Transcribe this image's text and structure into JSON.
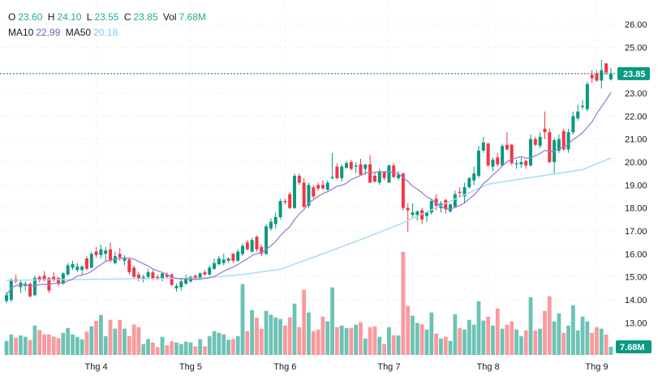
{
  "legend": {
    "o_label": "O",
    "o": "23.60",
    "h_label": "H",
    "h": "24.10",
    "l_label": "L",
    "l": "23.55",
    "c_label": "C",
    "c": "23.85",
    "vol_label": "Vol",
    "vol": "7.68M",
    "ma10_label": "MA10",
    "ma10": "22.99",
    "ma50_label": "MA50",
    "ma50": "20.18"
  },
  "colors": {
    "up": "#089981",
    "down": "#f23645",
    "up_vol": "#6cc3b5",
    "down_vol": "#f99a9d",
    "ma10": "#9b80cf",
    "ma50": "#a9dcf8",
    "last_tag": "#089981"
  },
  "chart_data": {
    "type": "candlestick",
    "price_axis": {
      "ticks": [
        "26.00",
        "25.00",
        "23.00",
        "22.00",
        "21.00",
        "20.00",
        "19.00",
        "18.00",
        "17.00",
        "16.00",
        "15.00",
        "14.00",
        "13.00"
      ],
      "range": [
        12.6,
        26.5
      ]
    },
    "time_axis": {
      "labels": [
        "Thg 4",
        "Thg 5",
        "Thg 6",
        "Thg 7",
        "Thg 8",
        "Thg 9"
      ],
      "label_bar_index": [
        19,
        39,
        59,
        81,
        102,
        125
      ]
    },
    "last_price_label": "23.85",
    "last_volume_label": "7.68M",
    "volume_unit": "M",
    "ma10_period": 10,
    "ma50_points": [
      [
        0,
        14.85
      ],
      [
        20,
        14.9
      ],
      [
        41,
        14.94
      ],
      [
        50,
        15.1
      ],
      [
        58,
        15.33
      ],
      [
        67,
        16.0
      ],
      [
        76,
        16.7
      ],
      [
        84,
        17.35
      ],
      [
        86,
        17.55
      ],
      [
        102,
        19.04
      ],
      [
        122,
        19.67
      ],
      [
        128,
        20.18
      ]
    ],
    "ohlcv": [
      [
        13.95,
        14.35,
        13.85,
        14.2,
        13.3
      ],
      [
        14.0,
        14.95,
        13.9,
        14.85,
        19.5
      ],
      [
        14.9,
        15.1,
        14.7,
        14.8,
        16.4
      ],
      [
        14.55,
        14.85,
        14.3,
        14.75,
        18.5
      ],
      [
        14.6,
        14.8,
        14.4,
        14.7,
        17.2
      ],
      [
        14.7,
        14.75,
        14.1,
        14.15,
        14.1
      ],
      [
        14.2,
        15.05,
        14.15,
        14.95,
        27.9
      ],
      [
        15.0,
        15.05,
        14.75,
        14.85,
        23.6
      ],
      [
        15.05,
        15.25,
        14.8,
        14.9,
        19.5
      ],
      [
        14.95,
        15.0,
        14.3,
        14.4,
        19.5
      ],
      [
        15.0,
        15.2,
        14.8,
        14.85,
        17.4
      ],
      [
        14.95,
        15.0,
        14.6,
        14.7,
        15.9
      ],
      [
        14.7,
        15.2,
        14.65,
        15.15,
        21.0
      ],
      [
        15.1,
        15.6,
        15.05,
        15.5,
        25.6
      ],
      [
        15.4,
        15.7,
        15.3,
        15.55,
        19.5
      ],
      [
        15.3,
        15.6,
        15.2,
        15.45,
        17.2
      ],
      [
        15.3,
        15.5,
        15.1,
        15.45,
        14.9
      ],
      [
        15.8,
        15.9,
        15.3,
        15.35,
        22.1
      ],
      [
        15.4,
        16.1,
        15.35,
        16.0,
        27.2
      ],
      [
        16.1,
        16.3,
        15.85,
        15.95,
        32.3
      ],
      [
        15.95,
        16.4,
        15.8,
        16.2,
        37.9
      ],
      [
        16.0,
        16.3,
        15.7,
        16.15,
        17.9
      ],
      [
        16.2,
        16.5,
        15.6,
        15.7,
        33.3
      ],
      [
        15.6,
        16.1,
        15.55,
        15.9,
        24.9
      ],
      [
        16.0,
        16.25,
        15.7,
        15.85,
        33.3
      ],
      [
        15.7,
        15.95,
        15.5,
        15.8,
        24.9
      ],
      [
        15.75,
        15.85,
        15.1,
        15.2,
        17.9
      ],
      [
        15.4,
        15.5,
        14.95,
        15.0,
        29.0
      ],
      [
        15.1,
        15.2,
        14.8,
        14.9,
        26.4
      ],
      [
        14.9,
        15.1,
        14.75,
        15.0,
        10.3
      ],
      [
        15.0,
        15.35,
        14.9,
        15.2,
        15.1
      ],
      [
        15.2,
        15.3,
        14.85,
        14.9,
        11.8
      ],
      [
        15.0,
        15.1,
        14.85,
        14.9,
        7.4
      ],
      [
        14.9,
        15.2,
        14.8,
        15.15,
        17.2
      ],
      [
        15.1,
        15.2,
        14.9,
        15.0,
        9.0
      ],
      [
        15.1,
        15.15,
        14.6,
        14.65,
        12.8
      ],
      [
        14.5,
        14.7,
        14.35,
        14.6,
        11.8
      ],
      [
        14.55,
        14.9,
        14.4,
        14.8,
        10.3
      ],
      [
        14.7,
        15.1,
        14.65,
        14.95,
        12.6
      ],
      [
        14.8,
        15.05,
        14.75,
        15.0,
        11.8
      ],
      [
        15.05,
        15.1,
        14.85,
        14.9,
        8.2
      ],
      [
        14.9,
        15.2,
        14.85,
        15.15,
        14.9
      ],
      [
        15.2,
        15.3,
        15.05,
        15.1,
        8.2
      ],
      [
        15.1,
        15.5,
        15.05,
        15.4,
        17.9
      ],
      [
        15.35,
        15.8,
        15.3,
        15.6,
        22.6
      ],
      [
        15.55,
        15.9,
        15.5,
        15.8,
        21.0
      ],
      [
        15.6,
        16.0,
        15.5,
        15.75,
        19.5
      ],
      [
        15.7,
        15.85,
        15.6,
        15.8,
        14.4
      ],
      [
        16.0,
        16.05,
        15.6,
        15.7,
        15.1
      ],
      [
        15.7,
        16.2,
        15.65,
        16.1,
        17.9
      ],
      [
        16.0,
        16.45,
        15.9,
        16.35,
        67.2
      ],
      [
        16.5,
        16.6,
        16.15,
        16.2,
        22.6
      ],
      [
        16.1,
        16.7,
        16.05,
        16.6,
        42.6
      ],
      [
        16.75,
        16.8,
        16.1,
        16.2,
        35.4
      ],
      [
        16.3,
        16.4,
        15.9,
        16.0,
        24.9
      ],
      [
        16.0,
        17.3,
        15.95,
        17.2,
        41.8
      ],
      [
        17.1,
        17.55,
        17.0,
        17.4,
        38.2
      ],
      [
        17.3,
        17.8,
        17.1,
        17.6,
        35.6
      ],
      [
        17.6,
        18.4,
        17.5,
        18.3,
        34.1
      ],
      [
        18.3,
        18.4,
        18.15,
        18.25,
        27.9
      ],
      [
        18.6,
        18.7,
        17.95,
        18.0,
        35.6
      ],
      [
        18.0,
        19.5,
        17.95,
        19.4,
        48.7
      ],
      [
        19.4,
        19.5,
        19.0,
        19.1,
        26.4
      ],
      [
        19.1,
        19.3,
        18.0,
        18.05,
        61.8
      ],
      [
        18.1,
        19.1,
        18.0,
        19.0,
        40.3
      ],
      [
        18.9,
        19.0,
        18.4,
        18.5,
        22.6
      ],
      [
        19.0,
        19.1,
        18.75,
        18.85,
        24.1
      ],
      [
        19.0,
        19.2,
        18.8,
        18.85,
        36.4
      ],
      [
        18.8,
        19.2,
        18.75,
        19.1,
        31.8
      ],
      [
        19.3,
        20.4,
        19.25,
        19.35,
        64.1
      ],
      [
        19.8,
        19.95,
        19.25,
        19.3,
        26.4
      ],
      [
        19.3,
        19.9,
        19.15,
        19.8,
        27.9
      ],
      [
        19.75,
        20.05,
        19.7,
        19.95,
        25.6
      ],
      [
        20.0,
        20.1,
        19.65,
        19.7,
        25.6
      ],
      [
        19.8,
        20.0,
        19.5,
        19.85,
        28.7
      ],
      [
        19.9,
        20.15,
        19.4,
        19.45,
        31.0
      ],
      [
        19.7,
        19.9,
        19.45,
        19.9,
        15.6
      ],
      [
        19.9,
        20.3,
        19.1,
        19.1,
        26.4
      ],
      [
        19.4,
        19.55,
        19.1,
        19.15,
        27.2
      ],
      [
        19.1,
        19.7,
        19.0,
        19.6,
        17.2
      ],
      [
        19.55,
        19.6,
        19.2,
        19.3,
        10.3
      ],
      [
        19.1,
        19.9,
        19.1,
        19.85,
        26.4
      ],
      [
        19.85,
        19.95,
        19.3,
        19.35,
        18.7
      ],
      [
        19.3,
        19.6,
        19.2,
        19.45,
        18.5
      ],
      [
        19.5,
        19.55,
        17.9,
        18.0,
        97.9
      ],
      [
        18.0,
        18.2,
        16.95,
        17.9,
        46.4
      ],
      [
        17.7,
        18.2,
        17.6,
        17.8,
        37.2
      ],
      [
        17.7,
        17.9,
        17.45,
        17.85,
        30.3
      ],
      [
        17.9,
        18.0,
        17.3,
        17.5,
        29.0
      ],
      [
        17.65,
        17.85,
        17.4,
        17.8,
        24.1
      ],
      [
        17.8,
        18.4,
        17.7,
        18.3,
        40.3
      ],
      [
        18.4,
        18.6,
        17.9,
        18.1,
        20.3
      ],
      [
        18.0,
        18.3,
        17.8,
        18.2,
        15.4
      ],
      [
        18.35,
        18.4,
        17.75,
        17.95,
        17.2
      ],
      [
        17.85,
        18.2,
        17.8,
        18.15,
        13.3
      ],
      [
        18.05,
        18.75,
        18.0,
        18.6,
        38.7
      ],
      [
        18.7,
        18.9,
        18.5,
        18.65,
        25.6
      ],
      [
        18.5,
        19.1,
        18.2,
        18.9,
        24.1
      ],
      [
        18.9,
        19.35,
        18.85,
        19.3,
        33.3
      ],
      [
        19.2,
        19.8,
        19.0,
        19.5,
        28.7
      ],
      [
        19.4,
        20.7,
        19.3,
        20.5,
        51.0
      ],
      [
        20.5,
        21.1,
        20.4,
        20.85,
        32.6
      ],
      [
        20.8,
        20.85,
        19.8,
        19.85,
        36.4
      ],
      [
        19.8,
        20.2,
        19.6,
        20.1,
        27.9
      ],
      [
        20.2,
        20.4,
        19.8,
        19.9,
        44.1
      ],
      [
        19.85,
        20.8,
        19.8,
        20.7,
        24.9
      ],
      [
        20.75,
        21.3,
        20.5,
        20.55,
        28.7
      ],
      [
        20.75,
        20.8,
        19.85,
        19.95,
        31.8
      ],
      [
        19.9,
        20.1,
        19.7,
        19.95,
        24.1
      ],
      [
        19.9,
        20.2,
        19.75,
        20.0,
        17.9
      ],
      [
        20.05,
        20.1,
        19.7,
        19.85,
        23.3
      ],
      [
        19.85,
        21.2,
        19.8,
        21.0,
        54.9
      ],
      [
        21.0,
        21.1,
        20.7,
        20.75,
        23.3
      ],
      [
        20.7,
        21.3,
        20.6,
        21.1,
        24.9
      ],
      [
        21.45,
        22.2,
        21.0,
        21.3,
        41.8
      ],
      [
        21.3,
        21.45,
        19.95,
        20.0,
        55.6
      ],
      [
        20.0,
        21.05,
        19.5,
        20.95,
        31.8
      ],
      [
        20.5,
        21.2,
        20.4,
        21.0,
        39.5
      ],
      [
        21.35,
        21.45,
        20.5,
        20.55,
        21.0
      ],
      [
        20.55,
        21.45,
        20.4,
        21.3,
        27.9
      ],
      [
        21.3,
        22.2,
        21.2,
        22.0,
        47.2
      ],
      [
        21.9,
        22.5,
        21.8,
        22.2,
        23.3
      ],
      [
        22.4,
        22.7,
        22.3,
        22.45,
        36.4
      ],
      [
        22.3,
        23.5,
        22.2,
        23.4,
        31.8
      ],
      [
        23.8,
        24.0,
        23.45,
        23.65,
        21.0
      ],
      [
        23.85,
        24.0,
        23.5,
        23.55,
        26.4
      ],
      [
        23.55,
        24.45,
        23.2,
        24.0,
        24.9
      ],
      [
        24.3,
        24.3,
        23.8,
        23.9,
        19.5
      ],
      [
        23.6,
        24.1,
        23.55,
        23.85,
        7.68
      ]
    ]
  }
}
